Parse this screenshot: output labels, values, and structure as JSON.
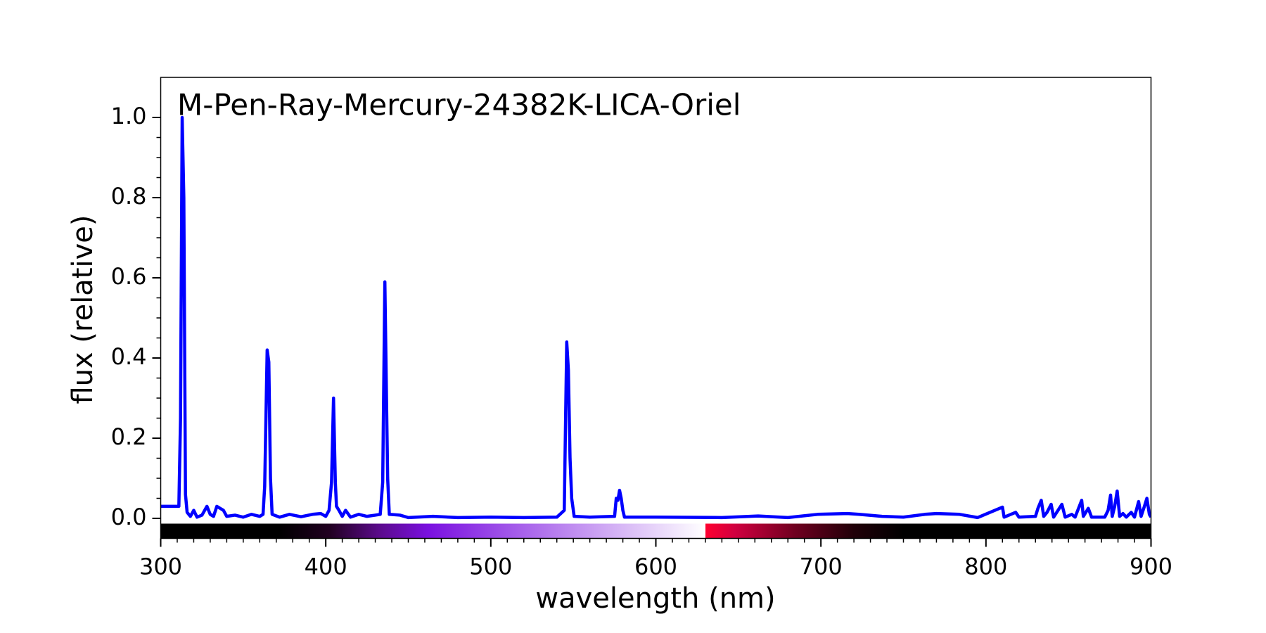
{
  "chart_data": {
    "type": "line",
    "title": "M-Pen-Ray-Mercury-24382K-LICA-Oriel",
    "x_label": "wavelength (nm)",
    "y_label": "flux (relative)",
    "color": "#0000ff",
    "x": [
      300,
      311,
      312,
      313,
      314,
      315,
      316,
      318,
      320,
      322,
      325,
      328,
      330,
      332,
      334,
      336,
      338,
      340,
      345,
      350,
      355,
      360,
      362,
      363,
      364.5,
      365.5,
      366.5,
      367.5,
      372,
      378,
      385,
      392,
      397,
      400,
      402,
      403.5,
      404.7,
      405.8,
      406.5,
      408,
      410,
      412,
      415,
      420,
      425,
      430,
      433,
      434.5,
      435.8,
      436.8,
      437.5,
      438.5,
      445,
      450,
      465,
      480,
      500,
      520,
      540,
      544.5,
      546,
      547,
      548,
      549,
      550.5,
      560,
      575,
      576,
      577,
      578,
      579,
      580,
      581,
      600,
      640,
      662,
      680,
      698,
      716,
      723,
      737,
      750,
      763,
      770,
      784,
      795,
      810,
      811,
      818,
      820,
      830,
      831.5,
      833.5,
      835,
      837,
      839.5,
      841,
      846,
      848,
      852,
      854,
      858,
      859,
      862,
      864,
      872,
      874,
      875.5,
      876.5,
      878,
      879.5,
      881,
      883,
      885,
      888,
      890,
      892.5,
      894,
      896,
      897.5,
      899,
      900
    ],
    "values": [
      0.03,
      0.03,
      0.25,
      1.0,
      0.8,
      0.06,
      0.015,
      0.005,
      0.02,
      0.003,
      0.008,
      0.03,
      0.01,
      0.005,
      0.03,
      0.025,
      0.02,
      0.005,
      0.008,
      0.003,
      0.01,
      0.005,
      0.01,
      0.08,
      0.42,
      0.39,
      0.1,
      0.01,
      0.003,
      0.01,
      0.004,
      0.01,
      0.012,
      0.005,
      0.02,
      0.09,
      0.3,
      0.09,
      0.03,
      0.02,
      0.005,
      0.02,
      0.003,
      0.01,
      0.005,
      0.008,
      0.01,
      0.09,
      0.59,
      0.3,
      0.1,
      0.01,
      0.008,
      0.002,
      0.005,
      0.002,
      0.003,
      0.002,
      0.003,
      0.02,
      0.44,
      0.37,
      0.15,
      0.05,
      0.005,
      0.003,
      0.005,
      0.05,
      0.045,
      0.07,
      0.05,
      0.02,
      0.003,
      0.003,
      0.002,
      0.006,
      0.002,
      0.01,
      0.012,
      0.01,
      0.005,
      0.003,
      0.01,
      0.012,
      0.01,
      0.002,
      0.028,
      0.003,
      0.015,
      0.003,
      0.005,
      0.025,
      0.045,
      0.005,
      0.015,
      0.035,
      0.003,
      0.035,
      0.003,
      0.01,
      0.003,
      0.045,
      0.005,
      0.025,
      0.003,
      0.003,
      0.02,
      0.058,
      0.005,
      0.03,
      0.068,
      0.005,
      0.012,
      0.003,
      0.015,
      0.003,
      0.042,
      0.005,
      0.03,
      0.05,
      0.01,
      0.003
    ],
    "xlim": [
      300,
      900
    ],
    "xticks": [
      300,
      400,
      500,
      600,
      700,
      800,
      900
    ],
    "ylim": [
      -0.05,
      1.1
    ],
    "yticks": [
      {
        "value": 0,
        "label": "0.0"
      },
      0.2,
      0.4,
      0.6,
      0.8,
      {
        "value": 1,
        "label": "1.0"
      }
    ]
  }
}
